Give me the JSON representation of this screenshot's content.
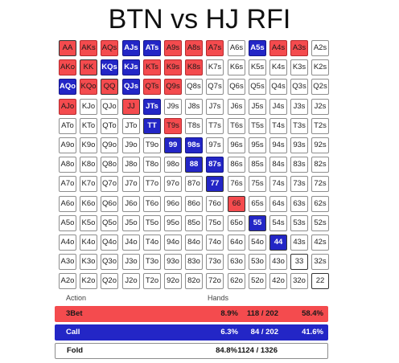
{
  "title": "BTN vs HJ RFI",
  "colors": {
    "raise": "#f44b4e",
    "call": "#2326c6",
    "fold": "#ffffff"
  },
  "grid": {
    "rows": [
      [
        {
          "h": "AA",
          "a": "raise"
        },
        {
          "h": "AKs",
          "a": "raise"
        },
        {
          "h": "AQs",
          "a": "raise"
        },
        {
          "h": "AJs",
          "a": "call"
        },
        {
          "h": "ATs",
          "a": "call"
        },
        {
          "h": "A9s",
          "a": "raise"
        },
        {
          "h": "A8s",
          "a": "raise"
        },
        {
          "h": "A7s",
          "a": "raise"
        },
        {
          "h": "A6s",
          "a": "fold"
        },
        {
          "h": "A5s",
          "a": "call"
        },
        {
          "h": "A4s",
          "a": "raise"
        },
        {
          "h": "A3s",
          "a": "raise"
        },
        {
          "h": "A2s",
          "a": "fold"
        }
      ],
      [
        {
          "h": "AKo",
          "a": "raise"
        },
        {
          "h": "KK",
          "a": "raise"
        },
        {
          "h": "KQs",
          "a": "call"
        },
        {
          "h": "KJs",
          "a": "call"
        },
        {
          "h": "KTs",
          "a": "raise"
        },
        {
          "h": "K9s",
          "a": "raise"
        },
        {
          "h": "K8s",
          "a": "raise"
        },
        {
          "h": "K7s",
          "a": "fold"
        },
        {
          "h": "K6s",
          "a": "fold"
        },
        {
          "h": "K5s",
          "a": "fold"
        },
        {
          "h": "K4s",
          "a": "fold"
        },
        {
          "h": "K3s",
          "a": "fold"
        },
        {
          "h": "K2s",
          "a": "fold"
        }
      ],
      [
        {
          "h": "AQo",
          "a": "call"
        },
        {
          "h": "KQo",
          "a": "raise"
        },
        {
          "h": "QQ",
          "a": "raise"
        },
        {
          "h": "QJs",
          "a": "call"
        },
        {
          "h": "QTs",
          "a": "raise"
        },
        {
          "h": "Q9s",
          "a": "raise"
        },
        {
          "h": "Q8s",
          "a": "fold"
        },
        {
          "h": "Q7s",
          "a": "fold"
        },
        {
          "h": "Q6s",
          "a": "fold"
        },
        {
          "h": "Q5s",
          "a": "fold"
        },
        {
          "h": "Q4s",
          "a": "fold"
        },
        {
          "h": "Q3s",
          "a": "fold"
        },
        {
          "h": "Q2s",
          "a": "fold"
        }
      ],
      [
        {
          "h": "AJo",
          "a": "raise"
        },
        {
          "h": "KJo",
          "a": "fold"
        },
        {
          "h": "QJo",
          "a": "fold"
        },
        {
          "h": "JJ",
          "a": "raise"
        },
        {
          "h": "JTs",
          "a": "call"
        },
        {
          "h": "J9s",
          "a": "fold"
        },
        {
          "h": "J8s",
          "a": "fold"
        },
        {
          "h": "J7s",
          "a": "fold"
        },
        {
          "h": "J6s",
          "a": "fold"
        },
        {
          "h": "J5s",
          "a": "fold"
        },
        {
          "h": "J4s",
          "a": "fold"
        },
        {
          "h": "J3s",
          "a": "fold"
        },
        {
          "h": "J2s",
          "a": "fold"
        }
      ],
      [
        {
          "h": "ATo",
          "a": "fold"
        },
        {
          "h": "KTo",
          "a": "fold"
        },
        {
          "h": "QTo",
          "a": "fold"
        },
        {
          "h": "JTo",
          "a": "fold"
        },
        {
          "h": "TT",
          "a": "call"
        },
        {
          "h": "T9s",
          "a": "raise"
        },
        {
          "h": "T8s",
          "a": "fold"
        },
        {
          "h": "T7s",
          "a": "fold"
        },
        {
          "h": "T6s",
          "a": "fold"
        },
        {
          "h": "T5s",
          "a": "fold"
        },
        {
          "h": "T4s",
          "a": "fold"
        },
        {
          "h": "T3s",
          "a": "fold"
        },
        {
          "h": "T2s",
          "a": "fold"
        }
      ],
      [
        {
          "h": "A9o",
          "a": "fold"
        },
        {
          "h": "K9o",
          "a": "fold"
        },
        {
          "h": "Q9o",
          "a": "fold"
        },
        {
          "h": "J9o",
          "a": "fold"
        },
        {
          "h": "T9o",
          "a": "fold"
        },
        {
          "h": "99",
          "a": "call"
        },
        {
          "h": "98s",
          "a": "call"
        },
        {
          "h": "97s",
          "a": "fold"
        },
        {
          "h": "96s",
          "a": "fold"
        },
        {
          "h": "95s",
          "a": "fold"
        },
        {
          "h": "94s",
          "a": "fold"
        },
        {
          "h": "93s",
          "a": "fold"
        },
        {
          "h": "92s",
          "a": "fold"
        }
      ],
      [
        {
          "h": "A8o",
          "a": "fold"
        },
        {
          "h": "K8o",
          "a": "fold"
        },
        {
          "h": "Q8o",
          "a": "fold"
        },
        {
          "h": "J8o",
          "a": "fold"
        },
        {
          "h": "T8o",
          "a": "fold"
        },
        {
          "h": "98o",
          "a": "fold"
        },
        {
          "h": "88",
          "a": "call"
        },
        {
          "h": "87s",
          "a": "call"
        },
        {
          "h": "86s",
          "a": "fold"
        },
        {
          "h": "85s",
          "a": "fold"
        },
        {
          "h": "84s",
          "a": "fold"
        },
        {
          "h": "83s",
          "a": "fold"
        },
        {
          "h": "82s",
          "a": "fold"
        }
      ],
      [
        {
          "h": "A7o",
          "a": "fold"
        },
        {
          "h": "K7o",
          "a": "fold"
        },
        {
          "h": "Q7o",
          "a": "fold"
        },
        {
          "h": "J7o",
          "a": "fold"
        },
        {
          "h": "T7o",
          "a": "fold"
        },
        {
          "h": "97o",
          "a": "fold"
        },
        {
          "h": "87o",
          "a": "fold"
        },
        {
          "h": "77",
          "a": "call"
        },
        {
          "h": "76s",
          "a": "fold"
        },
        {
          "h": "75s",
          "a": "fold"
        },
        {
          "h": "74s",
          "a": "fold"
        },
        {
          "h": "73s",
          "a": "fold"
        },
        {
          "h": "72s",
          "a": "fold"
        }
      ],
      [
        {
          "h": "A6o",
          "a": "fold"
        },
        {
          "h": "K6o",
          "a": "fold"
        },
        {
          "h": "Q6o",
          "a": "fold"
        },
        {
          "h": "J6o",
          "a": "fold"
        },
        {
          "h": "T6o",
          "a": "fold"
        },
        {
          "h": "96o",
          "a": "fold"
        },
        {
          "h": "86o",
          "a": "fold"
        },
        {
          "h": "76o",
          "a": "fold"
        },
        {
          "h": "66",
          "a": "raise"
        },
        {
          "h": "65s",
          "a": "fold"
        },
        {
          "h": "64s",
          "a": "fold"
        },
        {
          "h": "63s",
          "a": "fold"
        },
        {
          "h": "62s",
          "a": "fold"
        }
      ],
      [
        {
          "h": "A5o",
          "a": "fold"
        },
        {
          "h": "K5o",
          "a": "fold"
        },
        {
          "h": "Q5o",
          "a": "fold"
        },
        {
          "h": "J5o",
          "a": "fold"
        },
        {
          "h": "T5o",
          "a": "fold"
        },
        {
          "h": "95o",
          "a": "fold"
        },
        {
          "h": "85o",
          "a": "fold"
        },
        {
          "h": "75o",
          "a": "fold"
        },
        {
          "h": "65o",
          "a": "fold"
        },
        {
          "h": "55",
          "a": "call"
        },
        {
          "h": "54s",
          "a": "fold"
        },
        {
          "h": "53s",
          "a": "fold"
        },
        {
          "h": "52s",
          "a": "fold"
        }
      ],
      [
        {
          "h": "A4o",
          "a": "fold"
        },
        {
          "h": "K4o",
          "a": "fold"
        },
        {
          "h": "Q4o",
          "a": "fold"
        },
        {
          "h": "J4o",
          "a": "fold"
        },
        {
          "h": "T4o",
          "a": "fold"
        },
        {
          "h": "94o",
          "a": "fold"
        },
        {
          "h": "84o",
          "a": "fold"
        },
        {
          "h": "74o",
          "a": "fold"
        },
        {
          "h": "64o",
          "a": "fold"
        },
        {
          "h": "54o",
          "a": "fold"
        },
        {
          "h": "44",
          "a": "call"
        },
        {
          "h": "43s",
          "a": "fold"
        },
        {
          "h": "42s",
          "a": "fold"
        }
      ],
      [
        {
          "h": "A3o",
          "a": "fold"
        },
        {
          "h": "K3o",
          "a": "fold"
        },
        {
          "h": "Q3o",
          "a": "fold"
        },
        {
          "h": "J3o",
          "a": "fold"
        },
        {
          "h": "T3o",
          "a": "fold"
        },
        {
          "h": "93o",
          "a": "fold"
        },
        {
          "h": "83o",
          "a": "fold"
        },
        {
          "h": "73o",
          "a": "fold"
        },
        {
          "h": "63o",
          "a": "fold"
        },
        {
          "h": "53o",
          "a": "fold"
        },
        {
          "h": "43o",
          "a": "fold"
        },
        {
          "h": "33",
          "a": "fold"
        },
        {
          "h": "32s",
          "a": "fold"
        }
      ],
      [
        {
          "h": "A2o",
          "a": "fold"
        },
        {
          "h": "K2o",
          "a": "fold"
        },
        {
          "h": "Q2o",
          "a": "fold"
        },
        {
          "h": "J2o",
          "a": "fold"
        },
        {
          "h": "T2o",
          "a": "fold"
        },
        {
          "h": "92o",
          "a": "fold"
        },
        {
          "h": "82o",
          "a": "fold"
        },
        {
          "h": "72o",
          "a": "fold"
        },
        {
          "h": "62o",
          "a": "fold"
        },
        {
          "h": "52o",
          "a": "fold"
        },
        {
          "h": "42o",
          "a": "fold"
        },
        {
          "h": "32o",
          "a": "fold"
        },
        {
          "h": "22",
          "a": "fold"
        }
      ]
    ]
  },
  "summary": {
    "header_action": "Action",
    "header_hands": "Hands",
    "rows": [
      {
        "key": "3bet",
        "label": "3Bet",
        "pct": "8.9%",
        "combos": "118 / 202",
        "share": "58.4%"
      },
      {
        "key": "call",
        "label": "Call",
        "pct": "6.3%",
        "combos": "84 / 202",
        "share": "41.6%"
      },
      {
        "key": "fold",
        "label": "Fold",
        "pct": "84.8%",
        "combos": "1124 / 1326",
        "share": ""
      }
    ]
  }
}
